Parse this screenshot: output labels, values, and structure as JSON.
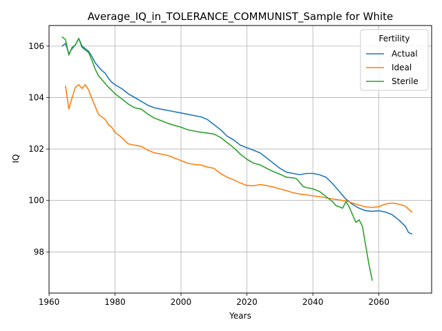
{
  "chart_data": {
    "type": "line",
    "title": "Average_IQ_in_TOLERANCE_COMMUNIST_Sample for White",
    "xlabel": "Years",
    "ylabel": "IQ",
    "xlim": [
      1960,
      2076
    ],
    "ylim": [
      96.4,
      106.8
    ],
    "xticks": [
      1960,
      1980,
      2000,
      2020,
      2040,
      2060
    ],
    "yticks": [
      98,
      100,
      102,
      104,
      106
    ],
    "grid": true,
    "legend": {
      "title": "Fertility",
      "placement": "top-right"
    },
    "series": [
      {
        "name": "Actual",
        "color": "#1f77b4",
        "points": [
          [
            1964,
            106.0
          ],
          [
            1965,
            106.1
          ],
          [
            1966,
            105.7
          ],
          [
            1967,
            105.9
          ],
          [
            1968,
            106.05
          ],
          [
            1969,
            106.3
          ],
          [
            1970,
            106.0
          ],
          [
            1971,
            105.9
          ],
          [
            1972,
            105.8
          ],
          [
            1973,
            105.6
          ],
          [
            1974,
            105.35
          ],
          [
            1975,
            105.2
          ],
          [
            1976,
            105.05
          ],
          [
            1977,
            104.95
          ],
          [
            1978,
            104.75
          ],
          [
            1979,
            104.6
          ],
          [
            1980,
            104.5
          ],
          [
            1982,
            104.35
          ],
          [
            1984,
            104.15
          ],
          [
            1986,
            104.0
          ],
          [
            1988,
            103.85
          ],
          [
            1990,
            103.7
          ],
          [
            1992,
            103.6
          ],
          [
            1994,
            103.55
          ],
          [
            1996,
            103.5
          ],
          [
            1998,
            103.45
          ],
          [
            2000,
            103.4
          ],
          [
            2002,
            103.35
          ],
          [
            2004,
            103.3
          ],
          [
            2006,
            103.25
          ],
          [
            2008,
            103.15
          ],
          [
            2010,
            102.95
          ],
          [
            2012,
            102.75
          ],
          [
            2014,
            102.5
          ],
          [
            2016,
            102.35
          ],
          [
            2018,
            102.15
          ],
          [
            2020,
            102.05
          ],
          [
            2022,
            101.95
          ],
          [
            2024,
            101.85
          ],
          [
            2026,
            101.65
          ],
          [
            2028,
            101.45
          ],
          [
            2030,
            101.25
          ],
          [
            2032,
            101.1
          ],
          [
            2034,
            101.05
          ],
          [
            2036,
            101.0
          ],
          [
            2038,
            101.05
          ],
          [
            2040,
            101.05
          ],
          [
            2042,
            101.0
          ],
          [
            2044,
            100.9
          ],
          [
            2046,
            100.65
          ],
          [
            2048,
            100.35
          ],
          [
            2050,
            100.05
          ],
          [
            2052,
            99.85
          ],
          [
            2054,
            99.7
          ],
          [
            2056,
            99.6
          ],
          [
            2058,
            99.58
          ],
          [
            2060,
            99.6
          ],
          [
            2062,
            99.55
          ],
          [
            2064,
            99.45
          ],
          [
            2066,
            99.25
          ],
          [
            2068,
            99.0
          ],
          [
            2069,
            98.75
          ],
          [
            2070,
            98.7
          ]
        ]
      },
      {
        "name": "Ideal",
        "color": "#ff7f0e",
        "points": [
          [
            1965,
            104.45
          ],
          [
            1966,
            103.55
          ],
          [
            1967,
            104.0
          ],
          [
            1968,
            104.4
          ],
          [
            1969,
            104.5
          ],
          [
            1970,
            104.35
          ],
          [
            1971,
            104.5
          ],
          [
            1972,
            104.3
          ],
          [
            1973,
            103.95
          ],
          [
            1974,
            103.65
          ],
          [
            1975,
            103.35
          ],
          [
            1976,
            103.25
          ],
          [
            1977,
            103.15
          ],
          [
            1978,
            102.95
          ],
          [
            1979,
            102.85
          ],
          [
            1980,
            102.65
          ],
          [
            1982,
            102.45
          ],
          [
            1984,
            102.2
          ],
          [
            1986,
            102.15
          ],
          [
            1988,
            102.1
          ],
          [
            1990,
            101.95
          ],
          [
            1992,
            101.85
          ],
          [
            1994,
            101.8
          ],
          [
            1996,
            101.75
          ],
          [
            1998,
            101.65
          ],
          [
            2000,
            101.55
          ],
          [
            2002,
            101.45
          ],
          [
            2004,
            101.4
          ],
          [
            2006,
            101.38
          ],
          [
            2008,
            101.3
          ],
          [
            2010,
            101.25
          ],
          [
            2012,
            101.05
          ],
          [
            2014,
            100.9
          ],
          [
            2016,
            100.8
          ],
          [
            2018,
            100.68
          ],
          [
            2020,
            100.58
          ],
          [
            2022,
            100.57
          ],
          [
            2024,
            100.62
          ],
          [
            2026,
            100.58
          ],
          [
            2028,
            100.52
          ],
          [
            2030,
            100.45
          ],
          [
            2032,
            100.38
          ],
          [
            2034,
            100.3
          ],
          [
            2036,
            100.25
          ],
          [
            2038,
            100.22
          ],
          [
            2040,
            100.18
          ],
          [
            2042,
            100.15
          ],
          [
            2044,
            100.1
          ],
          [
            2046,
            100.06
          ],
          [
            2048,
            100.02
          ],
          [
            2050,
            99.98
          ],
          [
            2052,
            99.9
          ],
          [
            2054,
            99.82
          ],
          [
            2056,
            99.75
          ],
          [
            2058,
            99.73
          ],
          [
            2060,
            99.76
          ],
          [
            2062,
            99.86
          ],
          [
            2064,
            99.9
          ],
          [
            2066,
            99.86
          ],
          [
            2068,
            99.78
          ],
          [
            2070,
            99.55
          ]
        ]
      },
      {
        "name": "Sterile",
        "color": "#2ca02c",
        "points": [
          [
            1964,
            106.35
          ],
          [
            1965,
            106.25
          ],
          [
            1966,
            105.65
          ],
          [
            1967,
            105.95
          ],
          [
            1968,
            106.05
          ],
          [
            1969,
            106.3
          ],
          [
            1970,
            105.95
          ],
          [
            1971,
            105.85
          ],
          [
            1972,
            105.75
          ],
          [
            1973,
            105.45
          ],
          [
            1974,
            105.1
          ],
          [
            1975,
            104.85
          ],
          [
            1976,
            104.7
          ],
          [
            1977,
            104.55
          ],
          [
            1978,
            104.4
          ],
          [
            1979,
            104.28
          ],
          [
            1980,
            104.15
          ],
          [
            1982,
            103.95
          ],
          [
            1984,
            103.75
          ],
          [
            1986,
            103.6
          ],
          [
            1988,
            103.55
          ],
          [
            1990,
            103.35
          ],
          [
            1992,
            103.2
          ],
          [
            1994,
            103.1
          ],
          [
            1996,
            103.0
          ],
          [
            1998,
            102.92
          ],
          [
            2000,
            102.85
          ],
          [
            2002,
            102.75
          ],
          [
            2004,
            102.7
          ],
          [
            2006,
            102.65
          ],
          [
            2008,
            102.62
          ],
          [
            2010,
            102.58
          ],
          [
            2012,
            102.45
          ],
          [
            2014,
            102.25
          ],
          [
            2016,
            102.05
          ],
          [
            2018,
            101.8
          ],
          [
            2020,
            101.6
          ],
          [
            2022,
            101.45
          ],
          [
            2024,
            101.38
          ],
          [
            2026,
            101.25
          ],
          [
            2028,
            101.12
          ],
          [
            2030,
            101.02
          ],
          [
            2032,
            100.9
          ],
          [
            2034,
            100.88
          ],
          [
            2035,
            100.85
          ],
          [
            2036,
            100.7
          ],
          [
            2037,
            100.55
          ],
          [
            2038,
            100.5
          ],
          [
            2040,
            100.45
          ],
          [
            2042,
            100.35
          ],
          [
            2043,
            100.25
          ],
          [
            2044,
            100.15
          ],
          [
            2045,
            100.05
          ],
          [
            2046,
            99.95
          ],
          [
            2047,
            99.8
          ],
          [
            2048,
            99.75
          ],
          [
            2049,
            99.7
          ],
          [
            2050,
            99.95
          ],
          [
            2051,
            99.75
          ],
          [
            2052,
            99.45
          ],
          [
            2053,
            99.15
          ],
          [
            2054,
            99.25
          ],
          [
            2055,
            99.0
          ],
          [
            2056,
            98.25
          ],
          [
            2057,
            97.5
          ],
          [
            2058,
            96.9
          ]
        ]
      }
    ]
  }
}
